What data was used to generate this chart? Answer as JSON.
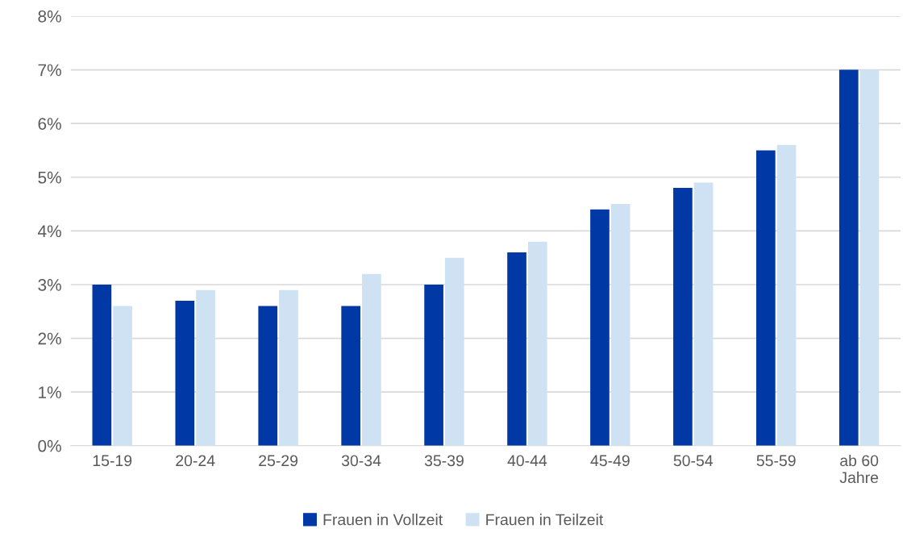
{
  "chart_data": {
    "type": "bar",
    "categories": [
      "15-19",
      "20-24",
      "25-29",
      "30-34",
      "35-39",
      "40-44",
      "45-49",
      "50-54",
      "55-59",
      "ab 60\nJahre"
    ],
    "series": [
      {
        "name": "Frauen in Vollzeit",
        "color": "#0039a6",
        "values": [
          3.0,
          2.7,
          2.6,
          2.6,
          3.0,
          3.6,
          4.4,
          4.8,
          5.5,
          7.0
        ]
      },
      {
        "name": "Frauen in Teilzeit",
        "color": "#cfe2f3",
        "values": [
          2.6,
          2.9,
          2.9,
          3.2,
          3.5,
          3.8,
          4.5,
          4.9,
          5.6,
          7.0
        ]
      }
    ],
    "ylim": [
      0,
      8
    ],
    "yticks": [
      {
        "value": 0,
        "label": "0%"
      },
      {
        "value": 1,
        "label": "1%"
      },
      {
        "value": 2,
        "label": "2%"
      },
      {
        "value": 3,
        "label": "3%"
      },
      {
        "value": 4,
        "label": "4%"
      },
      {
        "value": 5,
        "label": "5%"
      },
      {
        "value": 6,
        "label": "6%"
      },
      {
        "value": 7,
        "label": "7%"
      },
      {
        "value": 8,
        "label": "8%"
      }
    ],
    "grid": "y",
    "legend": "bottom"
  }
}
